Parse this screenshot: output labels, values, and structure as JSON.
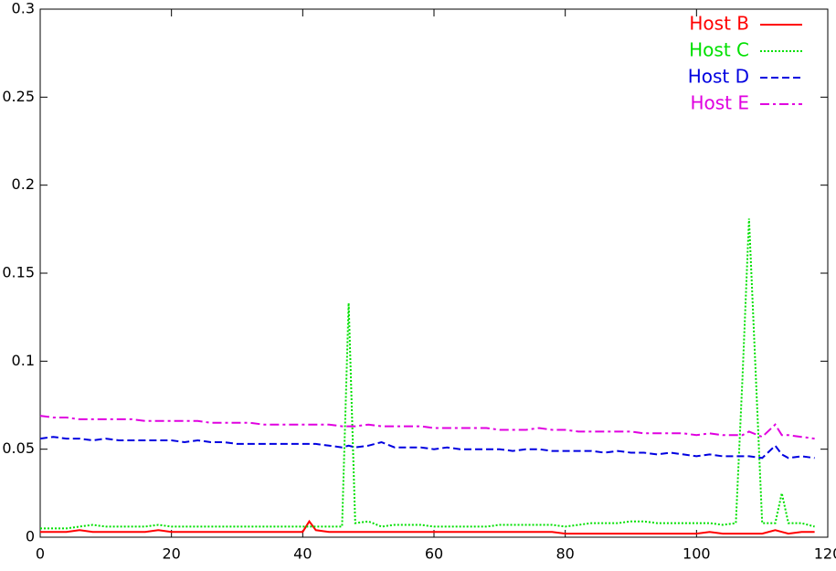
{
  "chart_data": {
    "type": "line",
    "x": [
      0,
      2,
      4,
      6,
      8,
      10,
      12,
      14,
      16,
      18,
      20,
      22,
      24,
      26,
      28,
      30,
      32,
      34,
      36,
      38,
      40,
      41,
      42,
      44,
      46,
      47,
      48,
      50,
      52,
      54,
      56,
      58,
      60,
      62,
      64,
      66,
      68,
      70,
      72,
      74,
      76,
      78,
      80,
      82,
      84,
      86,
      88,
      90,
      92,
      94,
      96,
      98,
      100,
      102,
      104,
      106,
      107,
      108,
      110,
      112,
      113,
      114,
      116,
      118
    ],
    "series": [
      {
        "name": "Host B",
        "color": "#ff0000",
        "values": [
          0.003,
          0.003,
          0.003,
          0.004,
          0.003,
          0.003,
          0.003,
          0.003,
          0.003,
          0.004,
          0.003,
          0.003,
          0.003,
          0.003,
          0.003,
          0.003,
          0.003,
          0.003,
          0.003,
          0.003,
          0.003,
          0.009,
          0.004,
          0.003,
          0.003,
          0.003,
          0.003,
          0.003,
          0.003,
          0.003,
          0.003,
          0.003,
          0.003,
          0.003,
          0.003,
          0.003,
          0.003,
          0.003,
          0.003,
          0.003,
          0.003,
          0.003,
          0.002,
          0.002,
          0.002,
          0.002,
          0.002,
          0.002,
          0.002,
          0.002,
          0.002,
          0.002,
          0.002,
          0.003,
          0.002,
          0.002,
          0.002,
          0.002,
          0.002,
          0.004,
          0.003,
          0.002,
          0.003,
          0.003
        ]
      },
      {
        "name": "Host C",
        "color": "#00e000",
        "values": [
          0.005,
          0.005,
          0.005,
          0.006,
          0.007,
          0.006,
          0.006,
          0.006,
          0.006,
          0.007,
          0.006,
          0.006,
          0.006,
          0.006,
          0.006,
          0.006,
          0.006,
          0.006,
          0.006,
          0.006,
          0.006,
          0.006,
          0.006,
          0.006,
          0.006,
          0.133,
          0.008,
          0.009,
          0.006,
          0.007,
          0.007,
          0.007,
          0.006,
          0.006,
          0.006,
          0.006,
          0.006,
          0.007,
          0.007,
          0.007,
          0.007,
          0.007,
          0.006,
          0.007,
          0.008,
          0.008,
          0.008,
          0.009,
          0.009,
          0.008,
          0.008,
          0.008,
          0.008,
          0.008,
          0.007,
          0.008,
          0.09,
          0.181,
          0.008,
          0.008,
          0.025,
          0.008,
          0.008,
          0.006
        ]
      },
      {
        "name": "Host D",
        "color": "#0000e0",
        "values": [
          0.056,
          0.057,
          0.056,
          0.056,
          0.055,
          0.056,
          0.055,
          0.055,
          0.055,
          0.055,
          0.055,
          0.054,
          0.055,
          0.054,
          0.054,
          0.053,
          0.053,
          0.053,
          0.053,
          0.053,
          0.053,
          0.053,
          0.053,
          0.052,
          0.051,
          0.052,
          0.051,
          0.052,
          0.054,
          0.051,
          0.051,
          0.051,
          0.05,
          0.051,
          0.05,
          0.05,
          0.05,
          0.05,
          0.049,
          0.05,
          0.05,
          0.049,
          0.049,
          0.049,
          0.049,
          0.048,
          0.049,
          0.048,
          0.048,
          0.047,
          0.048,
          0.047,
          0.046,
          0.047,
          0.046,
          0.046,
          0.046,
          0.046,
          0.045,
          0.052,
          0.047,
          0.045,
          0.046,
          0.045
        ]
      },
      {
        "name": "Host E",
        "color": "#e000e0",
        "values": [
          0.069,
          0.068,
          0.068,
          0.067,
          0.067,
          0.067,
          0.067,
          0.067,
          0.066,
          0.066,
          0.066,
          0.066,
          0.066,
          0.065,
          0.065,
          0.065,
          0.065,
          0.064,
          0.064,
          0.064,
          0.064,
          0.064,
          0.064,
          0.064,
          0.063,
          0.063,
          0.063,
          0.064,
          0.063,
          0.063,
          0.063,
          0.063,
          0.062,
          0.062,
          0.062,
          0.062,
          0.062,
          0.061,
          0.061,
          0.061,
          0.062,
          0.061,
          0.061,
          0.06,
          0.06,
          0.06,
          0.06,
          0.06,
          0.059,
          0.059,
          0.059,
          0.059,
          0.058,
          0.059,
          0.058,
          0.058,
          0.058,
          0.06,
          0.057,
          0.064,
          0.058,
          0.058,
          0.057,
          0.056
        ]
      }
    ],
    "xlim": [
      0,
      120
    ],
    "xticks": [
      0,
      20,
      40,
      60,
      80,
      100,
      120
    ],
    "ylim": [
      0,
      0.3
    ],
    "yticks": [
      0,
      0.05,
      0.1,
      0.15,
      0.2,
      0.25,
      0.3
    ],
    "legend": "upper right"
  }
}
